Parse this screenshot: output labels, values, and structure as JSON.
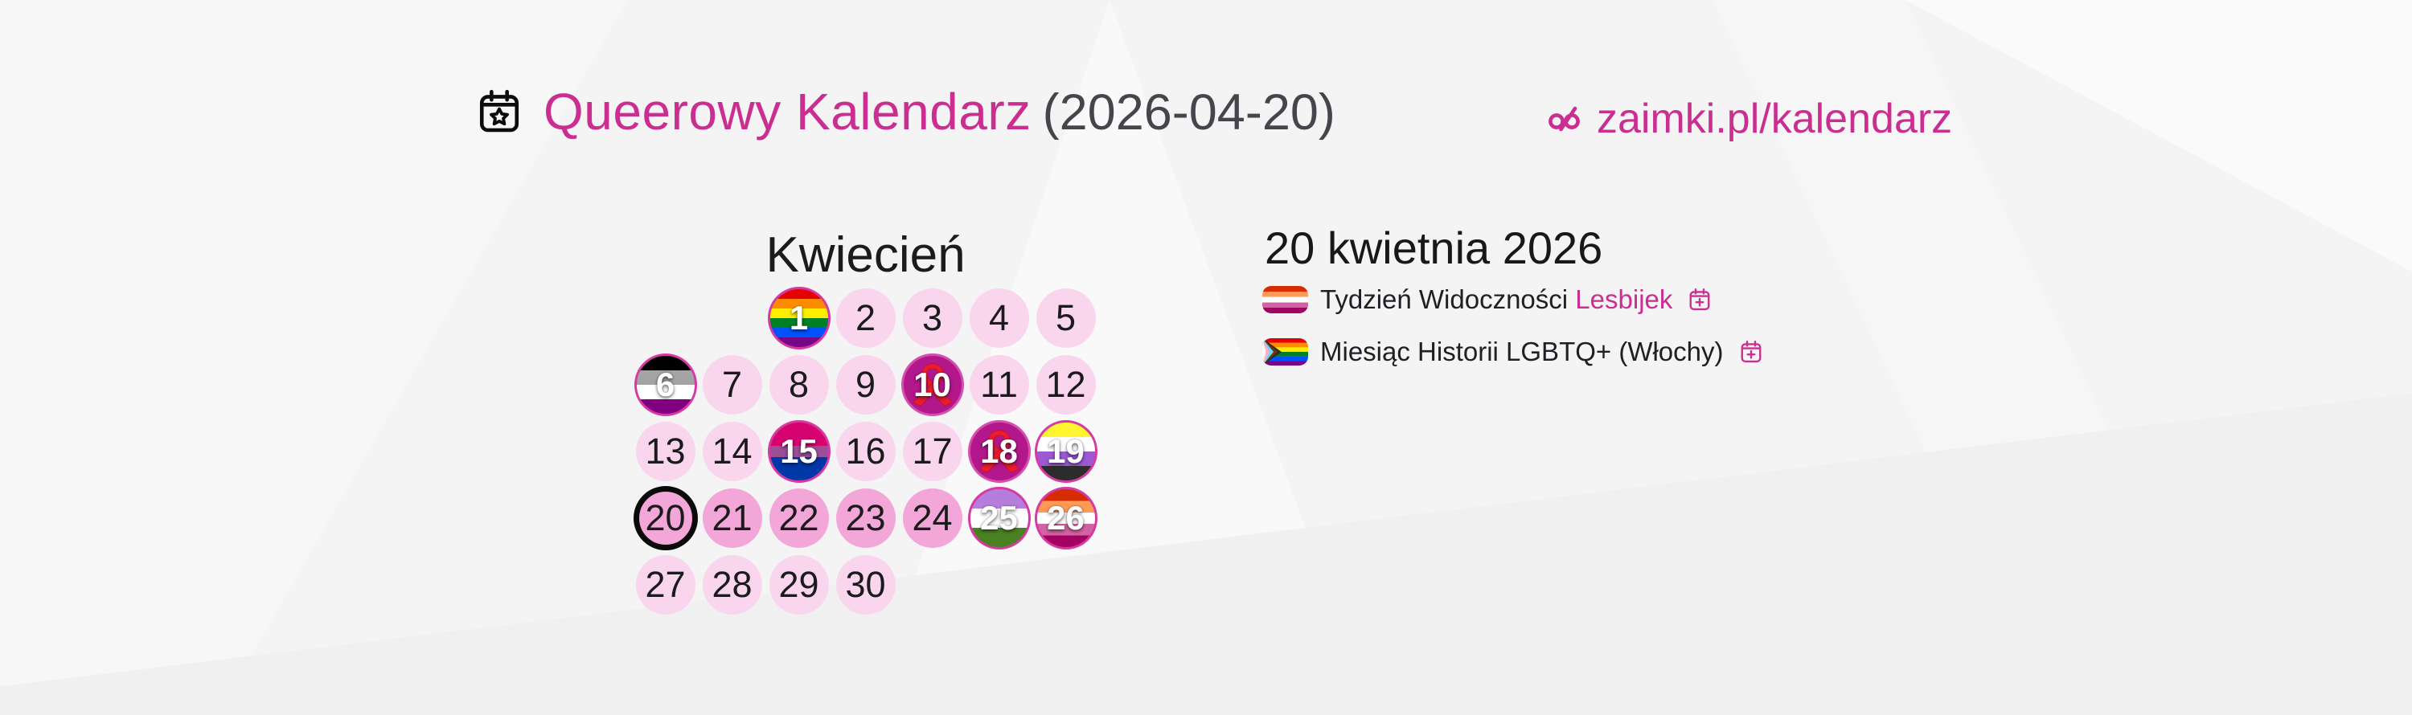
{
  "header": {
    "title": "Queerowy Kalendarz",
    "date_suffix": "(2026-04-20)",
    "site_link": "zaimki.pl/kalendarz"
  },
  "calendar": {
    "month_title": "Kwiecień",
    "first_day_column": 3,
    "days": [
      {
        "n": 1,
        "kind": "flag",
        "flag": "rainbow"
      },
      {
        "n": 2,
        "kind": "plain"
      },
      {
        "n": 3,
        "kind": "plain"
      },
      {
        "n": 4,
        "kind": "plain"
      },
      {
        "n": 5,
        "kind": "plain"
      },
      {
        "n": 6,
        "kind": "flag",
        "flag": "asexual"
      },
      {
        "n": 7,
        "kind": "plain"
      },
      {
        "n": 8,
        "kind": "plain"
      },
      {
        "n": 9,
        "kind": "plain"
      },
      {
        "n": 10,
        "kind": "event-ribbon"
      },
      {
        "n": 11,
        "kind": "plain"
      },
      {
        "n": 12,
        "kind": "plain"
      },
      {
        "n": 13,
        "kind": "plain"
      },
      {
        "n": 14,
        "kind": "plain"
      },
      {
        "n": 15,
        "kind": "flag",
        "flag": "bisexual"
      },
      {
        "n": 16,
        "kind": "plain"
      },
      {
        "n": 17,
        "kind": "plain"
      },
      {
        "n": 18,
        "kind": "event-ribbon"
      },
      {
        "n": 19,
        "kind": "flag",
        "flag": "nonbinary"
      },
      {
        "n": 20,
        "kind": "today",
        "week": true
      },
      {
        "n": 21,
        "kind": "plain",
        "week": true
      },
      {
        "n": 22,
        "kind": "plain",
        "week": true
      },
      {
        "n": 23,
        "kind": "plain",
        "week": true
      },
      {
        "n": 24,
        "kind": "plain",
        "week": true
      },
      {
        "n": 25,
        "kind": "flag",
        "flag": "genderqueer"
      },
      {
        "n": 26,
        "kind": "flag",
        "flag": "lesbian"
      },
      {
        "n": 27,
        "kind": "plain"
      },
      {
        "n": 28,
        "kind": "plain"
      },
      {
        "n": 29,
        "kind": "plain"
      },
      {
        "n": 30,
        "kind": "plain"
      }
    ]
  },
  "details": {
    "heading": "20 kwietnia 2026",
    "events": [
      {
        "flag": "lesbian",
        "text_prefix": "Tydzień Widoczności ",
        "link_text": "Lesbijek"
      },
      {
        "flag": "progress",
        "text_prefix": "Miesiąc Historii LGBTQ+ (Włochy)",
        "link_text": ""
      }
    ]
  },
  "colors": {
    "accent_pink": "#ca2e90",
    "text_dark": "#1b1b1d",
    "text_gray": "#45454c",
    "day_plain": "#f9d6ed",
    "day_current_week": "#f2a7d8",
    "day_event_bg": "#b2178c",
    "flag_day_border": "#d63aa2",
    "today_ring": "#0a0a0a",
    "ribbon_red": "#ea1c2d",
    "flags": {
      "rainbow": [
        [
          "#e40303",
          1
        ],
        [
          "#ff8c00",
          1
        ],
        [
          "#ffed00",
          1
        ],
        [
          "#008026",
          1
        ],
        [
          "#0052ff",
          1
        ],
        [
          "#750787",
          1
        ]
      ],
      "asexual": [
        [
          "#000000",
          1
        ],
        [
          "#a4a4a4",
          1
        ],
        [
          "#ffffff",
          1
        ],
        [
          "#810081",
          1
        ]
      ],
      "bisexual": [
        [
          "#d60270",
          2
        ],
        [
          "#9b4f96",
          1
        ],
        [
          "#0038a8",
          2
        ]
      ],
      "nonbinary": [
        [
          "#fff430",
          1
        ],
        [
          "#ffffff",
          1
        ],
        [
          "#9c59d1",
          1
        ],
        [
          "#2c2c2c",
          1
        ]
      ],
      "genderqueer": [
        [
          "#b57edc",
          1
        ],
        [
          "#ffffff",
          1
        ],
        [
          "#4a8123",
          1
        ]
      ],
      "lesbian": [
        [
          "#d52d00",
          1
        ],
        [
          "#ff9a56",
          1
        ],
        [
          "#ffffff",
          1
        ],
        [
          "#d362a4",
          1
        ],
        [
          "#a30262",
          1
        ]
      ]
    }
  }
}
